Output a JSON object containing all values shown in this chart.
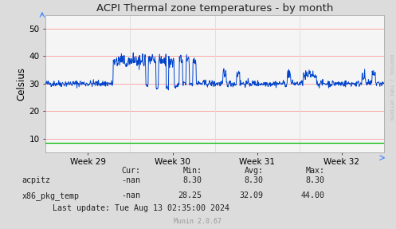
{
  "title": "ACPI Thermal zone temperatures - by month",
  "ylabel": "Celsius",
  "ylim": [
    5,
    55
  ],
  "yticks": [
    10,
    20,
    30,
    40,
    50
  ],
  "xtick_labels": [
    "Week 29",
    "Week 30",
    "Week 31",
    "Week 32"
  ],
  "bg_color": "#DCDCDC",
  "plot_bg_color": "#F5F5F5",
  "grid_color_h": "#FF9999",
  "grid_color_v": "#DDDDDD",
  "line_color_blue": "#0044CC",
  "line_color_green": "#00BB00",
  "legend": [
    {
      "label": "acpitz",
      "color": "#00BB00"
    },
    {
      "label": "x86_pkg_temp",
      "color": "#0044CC"
    }
  ],
  "stats": {
    "acpitz": {
      "cur": "-nan",
      "min": "8.30",
      "avg": "8.30",
      "max": "8.30"
    },
    "x86_pkg_temp": {
      "cur": "-nan",
      "min": "28.25",
      "avg": "32.09",
      "max": "44.00"
    }
  },
  "last_update": "Last update: Tue Aug 13 02:35:00 2024",
  "munin_version": "Munin 2.0.67",
  "rrdtool_label": "RRDTOOL / TOBI OETIKER"
}
